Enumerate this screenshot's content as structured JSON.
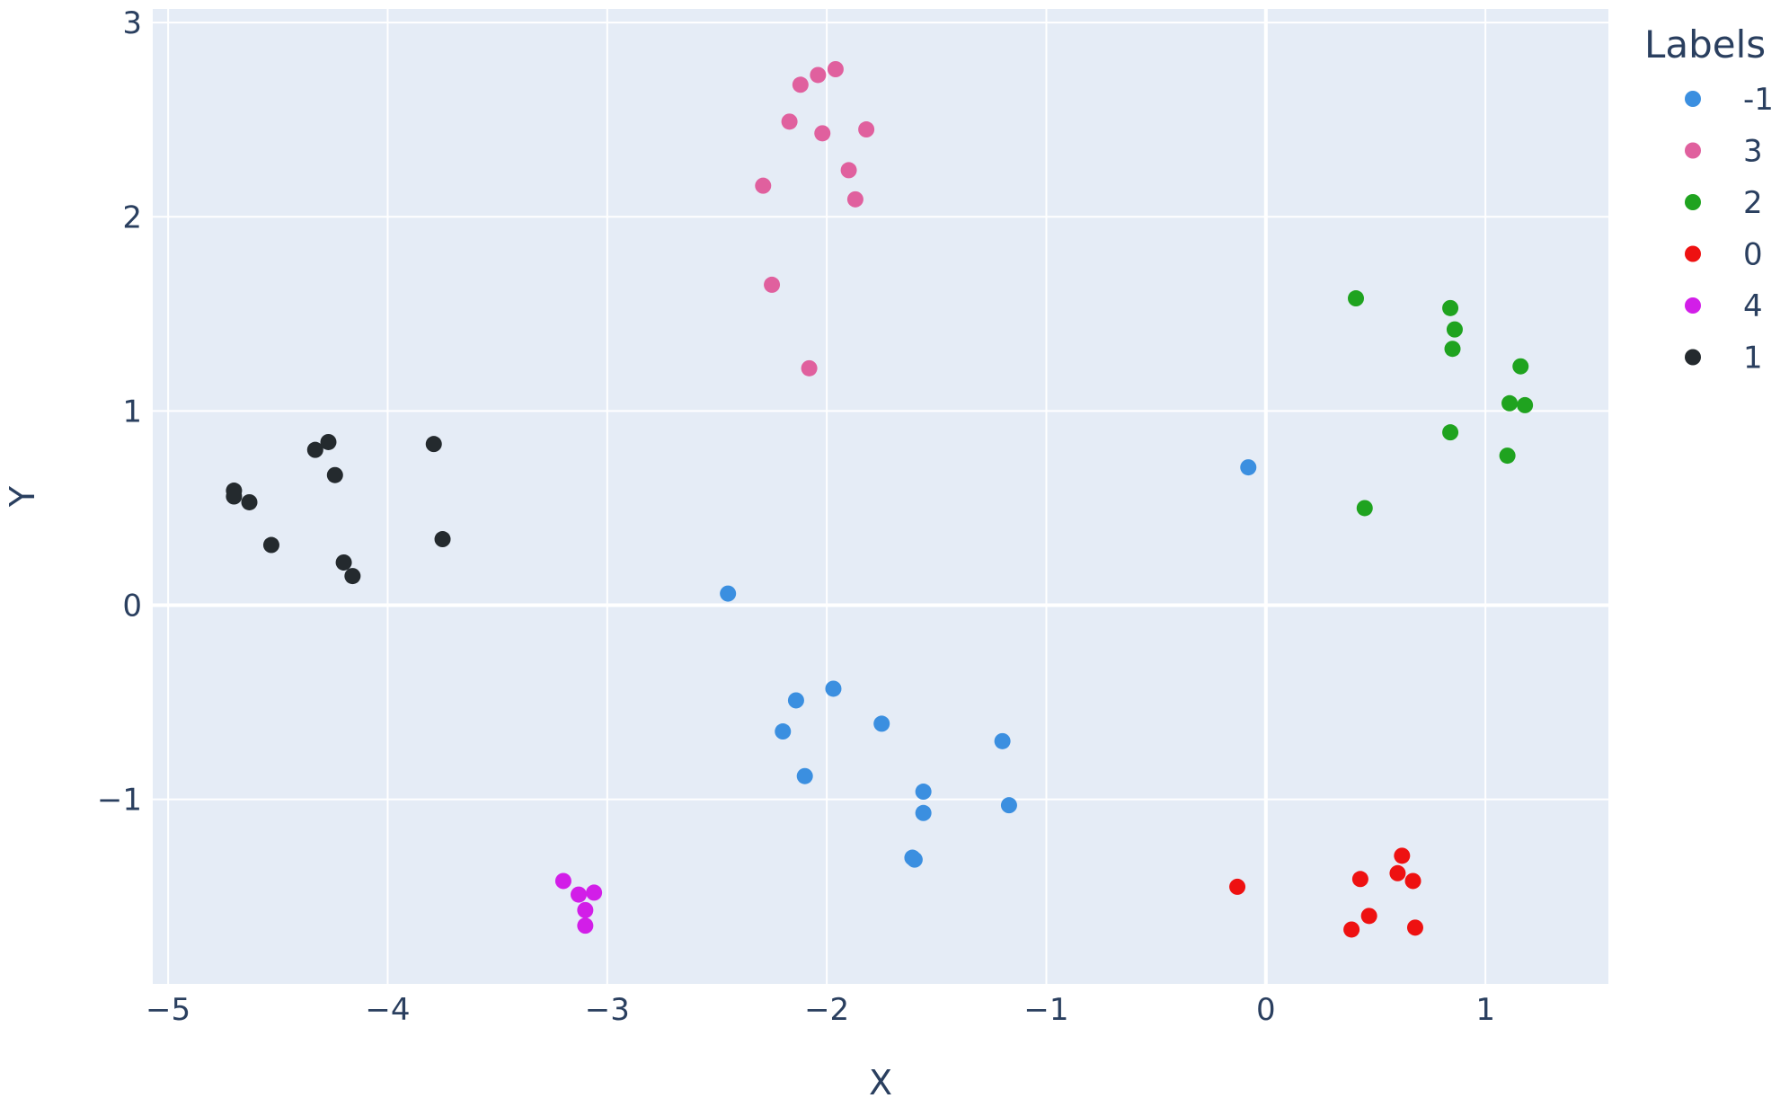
{
  "chart_data": {
    "type": "scatter",
    "title": "",
    "xlabel": "X",
    "ylabel": "Y",
    "xlim": [
      -5.07,
      1.56
    ],
    "ylim": [
      -1.95,
      3.07
    ],
    "grid": true,
    "legend": {
      "title": "Labels",
      "placement": "top-right"
    },
    "x_ticks": [
      {
        "value": -5,
        "label": "−5"
      },
      {
        "value": -4,
        "label": "−4"
      },
      {
        "value": -3,
        "label": "−3"
      },
      {
        "value": -2,
        "label": "−2"
      },
      {
        "value": -1,
        "label": "−1"
      },
      {
        "value": 0,
        "label": "0"
      },
      {
        "value": 1,
        "label": "1"
      }
    ],
    "y_ticks": [
      {
        "value": -1,
        "label": "−1"
      },
      {
        "value": 0,
        "label": "0"
      },
      {
        "value": 1,
        "label": "1"
      },
      {
        "value": 2,
        "label": "2"
      },
      {
        "value": 3,
        "label": "3"
      }
    ],
    "series": [
      {
        "name": "-1",
        "color": "#3b8fe0",
        "points": [
          [
            -2.45,
            0.06
          ],
          [
            -0.08,
            0.71
          ],
          [
            -2.14,
            -0.49
          ],
          [
            -2.2,
            -0.65
          ],
          [
            -1.97,
            -0.43
          ],
          [
            -1.75,
            -0.61
          ],
          [
            -2.1,
            -0.88
          ],
          [
            -1.2,
            -0.7
          ],
          [
            -1.56,
            -0.96
          ],
          [
            -1.56,
            -1.07
          ],
          [
            -1.17,
            -1.03
          ],
          [
            -1.61,
            -1.3
          ],
          [
            -1.6,
            -1.31
          ]
        ]
      },
      {
        "name": "3",
        "color": "#e0609e",
        "points": [
          [
            -1.96,
            2.76
          ],
          [
            -2.04,
            2.73
          ],
          [
            -2.12,
            2.68
          ],
          [
            -2.17,
            2.49
          ],
          [
            -2.02,
            2.43
          ],
          [
            -1.82,
            2.45
          ],
          [
            -2.29,
            2.16
          ],
          [
            -1.9,
            2.24
          ],
          [
            -1.87,
            2.09
          ],
          [
            -2.25,
            1.65
          ],
          [
            -2.08,
            1.22
          ]
        ]
      },
      {
        "name": "2",
        "color": "#1fa31f",
        "points": [
          [
            0.41,
            1.58
          ],
          [
            0.84,
            1.53
          ],
          [
            0.86,
            1.42
          ],
          [
            0.85,
            1.32
          ],
          [
            1.16,
            1.23
          ],
          [
            1.11,
            1.04
          ],
          [
            1.18,
            1.03
          ],
          [
            0.84,
            0.89
          ],
          [
            1.1,
            0.77
          ],
          [
            0.45,
            0.5
          ]
        ]
      },
      {
        "name": "0",
        "color": "#ee1111",
        "points": [
          [
            -0.13,
            -1.45
          ],
          [
            0.62,
            -1.29
          ],
          [
            0.43,
            -1.41
          ],
          [
            0.6,
            -1.38
          ],
          [
            0.67,
            -1.42
          ],
          [
            0.47,
            -1.6
          ],
          [
            0.39,
            -1.67
          ],
          [
            0.68,
            -1.66
          ]
        ]
      },
      {
        "name": "4",
        "color": "#d21ee8",
        "points": [
          [
            -3.2,
            -1.42
          ],
          [
            -3.13,
            -1.49
          ],
          [
            -3.06,
            -1.48
          ],
          [
            -3.1,
            -1.57
          ],
          [
            -3.1,
            -1.65
          ]
        ]
      },
      {
        "name": "1",
        "color": "#242a2e",
        "points": [
          [
            -4.7,
            0.59
          ],
          [
            -4.7,
            0.56
          ],
          [
            -4.63,
            0.53
          ],
          [
            -4.53,
            0.31
          ],
          [
            -4.33,
            0.8
          ],
          [
            -4.27,
            0.84
          ],
          [
            -4.24,
            0.67
          ],
          [
            -4.2,
            0.22
          ],
          [
            -4.16,
            0.15
          ],
          [
            -3.79,
            0.83
          ],
          [
            -3.75,
            0.34
          ]
        ]
      }
    ]
  }
}
